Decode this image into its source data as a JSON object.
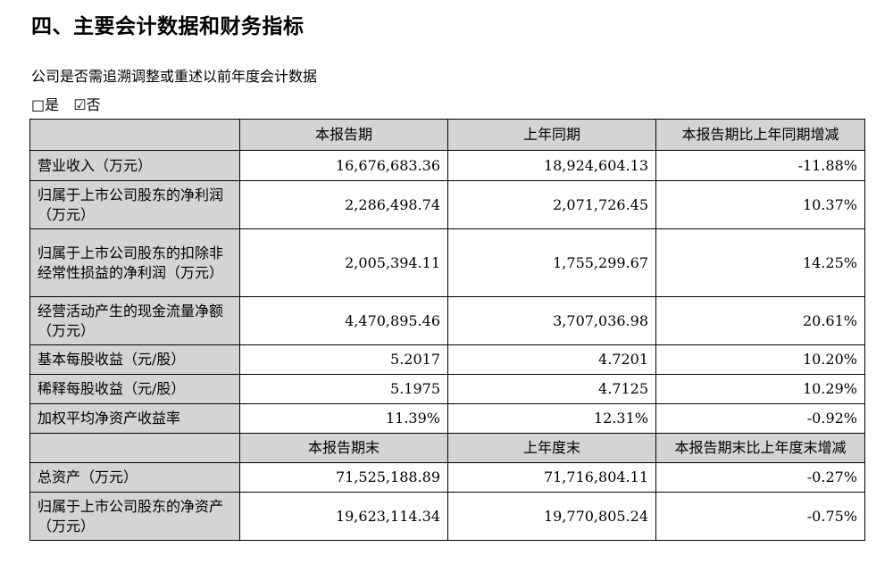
{
  "heading": "四、主要会计数据和财务指标",
  "question": "公司是否需追溯调整或重述以前年度会计数据",
  "options": [
    {
      "glyph": "□",
      "label": "是"
    },
    {
      "glyph": "☑",
      "label": "否"
    }
  ],
  "table": {
    "header1": [
      "本报告期",
      "上年同期",
      "本报告期比上年同期增减"
    ],
    "rows1": [
      {
        "label": "营业收入（万元）",
        "values": [
          "16,676,683.36",
          "18,924,604.13",
          "-11.88%"
        ]
      },
      {
        "label": "归属于上市公司股东的净利润（万元）",
        "values": [
          "2,286,498.74",
          "2,071,726.45",
          "10.37%"
        ]
      },
      {
        "label": "归属于上市公司股东的扣除非经常性损益的净利润（万元）",
        "values": [
          "2,005,394.11",
          "1,755,299.67",
          "14.25%"
        ]
      },
      {
        "label": "经营活动产生的现金流量净额（万元）",
        "values": [
          "4,470,895.46",
          "3,707,036.98",
          "20.61%"
        ]
      },
      {
        "label": "基本每股收益（元/股）",
        "values": [
          "5.2017",
          "4.7201",
          "10.20%"
        ]
      },
      {
        "label": "稀释每股收益（元/股）",
        "values": [
          "5.1975",
          "4.7125",
          "10.29%"
        ]
      },
      {
        "label": "加权平均净资产收益率",
        "values": [
          "11.39%",
          "12.31%",
          "-0.92%"
        ]
      }
    ],
    "header2": [
      "本报告期末",
      "上年度末",
      "本报告期末比上年度末增减"
    ],
    "rows2": [
      {
        "label": "总资产（万元）",
        "values": [
          "71,525,188.89",
          "71,716,804.11",
          "-0.27%"
        ]
      },
      {
        "label": "归属于上市公司股东的净资产（万元）",
        "values": [
          "19,623,114.34",
          "19,770,805.24",
          "-0.75%"
        ]
      }
    ]
  }
}
